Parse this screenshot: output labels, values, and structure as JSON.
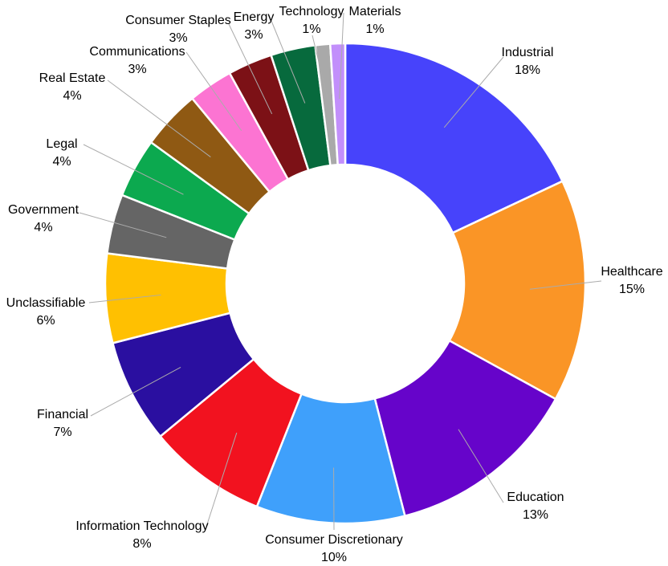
{
  "chart_data": {
    "type": "pie",
    "subtype": "donut",
    "title": "",
    "unit": "%",
    "direction": "clockwise",
    "start_angle_deg": 0,
    "legend": "none (direct callout labels with leader lines)",
    "background_color": "#FFFFFF",
    "leader_line_color": "#ABABAB",
    "label_text_color": "#000000",
    "slice_gap_color": "#FFFFFF",
    "categories": [
      "Industrial",
      "Healthcare",
      "Education",
      "Consumer Discretionary",
      "Information Technology",
      "Financial",
      "Unclassifiable",
      "Government",
      "Legal",
      "Real Estate",
      "Communications",
      "Consumer Staples",
      "Energy",
      "Technology",
      "Materials"
    ],
    "values": [
      18,
      15,
      13,
      10,
      8,
      7,
      6,
      4,
      4,
      4,
      3,
      3,
      3,
      1,
      1
    ],
    "slices": [
      {
        "label": "Industrial",
        "value": 18,
        "value_text": "18%",
        "color": "#4743FB"
      },
      {
        "label": "Healthcare",
        "value": 15,
        "value_text": "15%",
        "color": "#FA9526"
      },
      {
        "label": "Education",
        "value": 13,
        "value_text": "13%",
        "color": "#6604CA"
      },
      {
        "label": "Consumer Discretionary",
        "value": 10,
        "value_text": "10%",
        "color": "#3FA0FB"
      },
      {
        "label": "Information Technology",
        "value": 8,
        "value_text": "8%",
        "color": "#F2121F"
      },
      {
        "label": "Financial",
        "value": 7,
        "value_text": "7%",
        "color": "#2A0FA0"
      },
      {
        "label": "Unclassifiable",
        "value": 6,
        "value_text": "6%",
        "color": "#FFC001"
      },
      {
        "label": "Government",
        "value": 4,
        "value_text": "4%",
        "color": "#656565"
      },
      {
        "label": "Legal",
        "value": 4,
        "value_text": "4%",
        "color": "#0CA94F"
      },
      {
        "label": "Real Estate",
        "value": 4,
        "value_text": "4%",
        "color": "#8F5913"
      },
      {
        "label": "Communications",
        "value": 3,
        "value_text": "3%",
        "color": "#FC74D2"
      },
      {
        "label": "Consumer Staples",
        "value": 3,
        "value_text": "3%",
        "color": "#7C1116"
      },
      {
        "label": "Energy",
        "value": 3,
        "value_text": "3%",
        "color": "#076A3D"
      },
      {
        "label": "Technology",
        "value": 1,
        "value_text": "1%",
        "color": "#A9A9A9"
      },
      {
        "label": "Materials",
        "value": 1,
        "value_text": "1%",
        "color": "#C28FFB"
      }
    ]
  }
}
